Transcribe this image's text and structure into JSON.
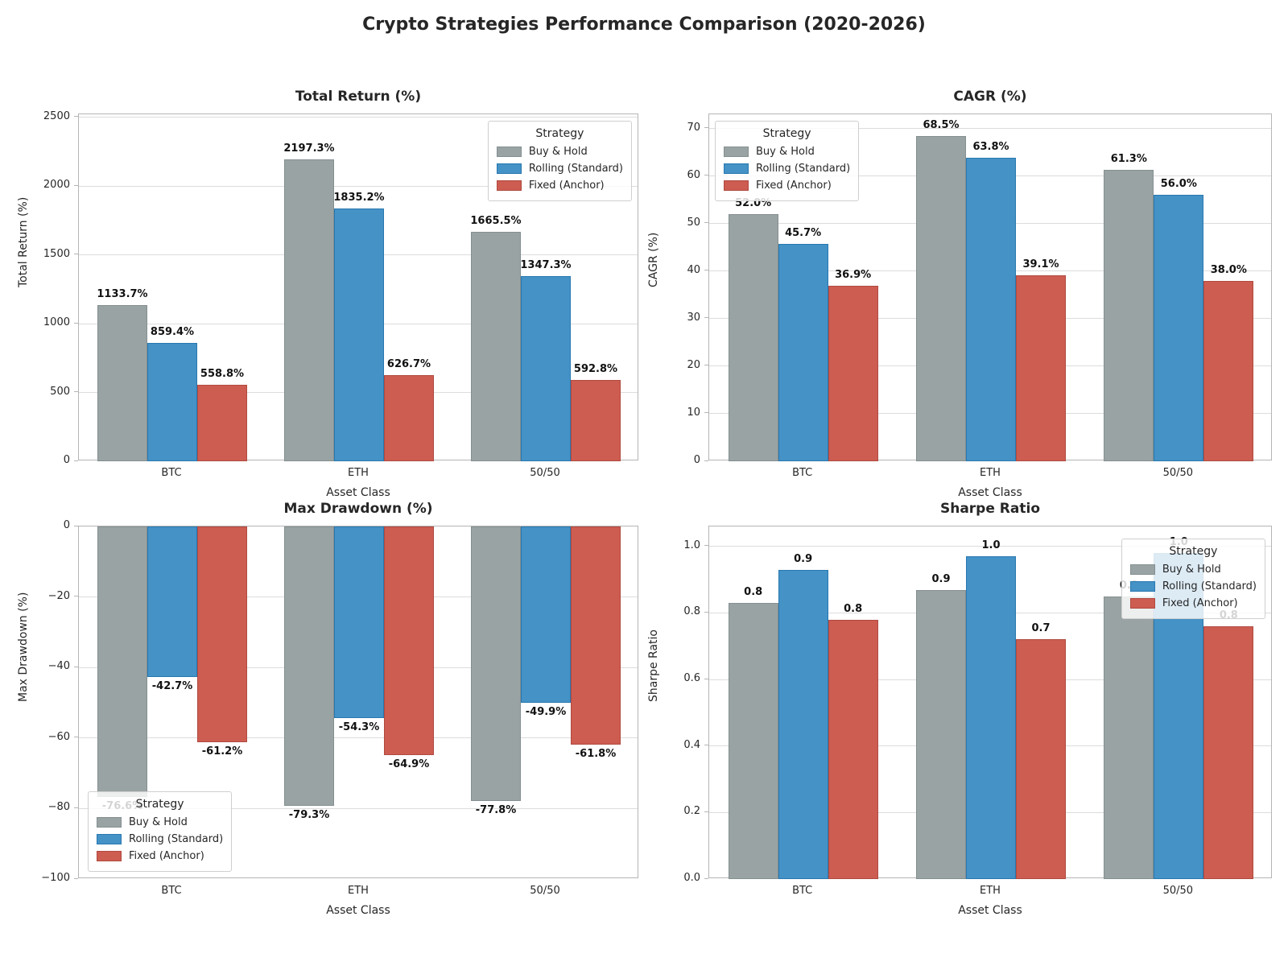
{
  "title": "Crypto Strategies Performance Comparison (2020-2026)",
  "legend": {
    "title": "Strategy",
    "entries": [
      {
        "label": "Buy & Hold",
        "color": "#9aa3a3",
        "edge": "#848f90"
      },
      {
        "label": "Rolling (Standard)",
        "color": "#4492c6",
        "edge": "#2878b0"
      },
      {
        "label": "Fixed (Anchor)",
        "color": "#cd5c51",
        "edge": "#b04a40"
      }
    ]
  },
  "chart_data": [
    {
      "id": "total-return",
      "type": "bar",
      "title": "Total Return (%)",
      "xlabel": "Asset Class",
      "ylabel": "Total Return (%)",
      "categories": [
        "BTC",
        "ETH",
        "50/50"
      ],
      "series": [
        {
          "name": "Buy & Hold",
          "values": [
            1133.7,
            2197.3,
            1665.5
          ],
          "labels": [
            "1133.7%",
            "2197.3%",
            "1665.5%"
          ]
        },
        {
          "name": "Rolling (Standard)",
          "values": [
            859.4,
            1835.2,
            1347.3
          ],
          "labels": [
            "859.4%",
            "1835.2%",
            "1347.3%"
          ]
        },
        {
          "name": "Fixed (Anchor)",
          "values": [
            558.8,
            626.7,
            592.8
          ],
          "labels": [
            "558.8%",
            "626.7%",
            "592.8%"
          ]
        }
      ],
      "ylim": [
        0,
        2523
      ],
      "ytick_values": [
        0,
        500,
        1000,
        1500,
        2000,
        2500
      ],
      "ytick_labels": [
        "0",
        "500",
        "1000",
        "1500",
        "2000",
        "2500"
      ],
      "grid": true,
      "legend_pos": "upper-right"
    },
    {
      "id": "cagr",
      "type": "bar",
      "title": "CAGR (%)",
      "xlabel": "Asset Class",
      "ylabel": "CAGR (%)",
      "categories": [
        "BTC",
        "ETH",
        "50/50"
      ],
      "series": [
        {
          "name": "Buy & Hold",
          "values": [
            52.0,
            68.5,
            61.3
          ],
          "labels": [
            "52.0%",
            "68.5%",
            "61.3%"
          ]
        },
        {
          "name": "Rolling (Standard)",
          "values": [
            45.7,
            63.8,
            56.0
          ],
          "labels": [
            "45.7%",
            "63.8%",
            "56.0%"
          ]
        },
        {
          "name": "Fixed (Anchor)",
          "values": [
            36.9,
            39.1,
            38.0
          ],
          "labels": [
            "36.9%",
            "39.1%",
            "38.0%"
          ]
        }
      ],
      "ylim": [
        0,
        73
      ],
      "ytick_values": [
        0,
        10,
        20,
        30,
        40,
        50,
        60,
        70
      ],
      "ytick_labels": [
        "0",
        "10",
        "20",
        "30",
        "40",
        "50",
        "60",
        "70"
      ],
      "grid": true,
      "legend_pos": "upper-left"
    },
    {
      "id": "max-drawdown",
      "type": "bar",
      "title": "Max Drawdown (%)",
      "xlabel": "Asset Class",
      "ylabel": "Max Drawdown (%)",
      "categories": [
        "BTC",
        "ETH",
        "50/50"
      ],
      "series": [
        {
          "name": "Buy & Hold",
          "values": [
            -76.6,
            -79.3,
            -77.8
          ],
          "labels": [
            "-76.6%",
            "-79.3%",
            "-77.8%"
          ]
        },
        {
          "name": "Rolling (Standard)",
          "values": [
            -42.7,
            -54.3,
            -49.9
          ],
          "labels": [
            "-42.7%",
            "-54.3%",
            "-49.9%"
          ]
        },
        {
          "name": "Fixed (Anchor)",
          "values": [
            -61.2,
            -64.9,
            -61.8
          ],
          "labels": [
            "-61.2%",
            "-64.9%",
            "-61.8%"
          ]
        }
      ],
      "ylim": [
        -100,
        0
      ],
      "ytick_values": [
        0,
        -20,
        -40,
        -60,
        -80,
        -100
      ],
      "ytick_labels": [
        "0",
        "−20",
        "−40",
        "−60",
        "−80",
        "−100"
      ],
      "grid": true,
      "legend_pos": "lower-left"
    },
    {
      "id": "sharpe-ratio",
      "type": "bar",
      "title": "Sharpe Ratio",
      "xlabel": "Asset Class",
      "ylabel": "Sharpe Ratio",
      "categories": [
        "BTC",
        "ETH",
        "50/50"
      ],
      "series": [
        {
          "name": "Buy & Hold",
          "values": [
            0.83,
            0.87,
            0.85
          ],
          "labels": [
            "0.8",
            "0.9",
            "0.8"
          ]
        },
        {
          "name": "Rolling (Standard)",
          "values": [
            0.93,
            0.97,
            0.98
          ],
          "labels": [
            "0.9",
            "1.0",
            "1.0"
          ]
        },
        {
          "name": "Fixed (Anchor)",
          "values": [
            0.78,
            0.72,
            0.76
          ],
          "labels": [
            "0.8",
            "0.7",
            "0.8"
          ]
        }
      ],
      "ylim": [
        0,
        1.06
      ],
      "ytick_values": [
        0.0,
        0.2,
        0.4,
        0.6,
        0.8,
        1.0
      ],
      "ytick_labels": [
        "0.0",
        "0.2",
        "0.4",
        "0.6",
        "0.8",
        "1.0"
      ],
      "grid": true,
      "legend_pos": "upper-right-low"
    }
  ]
}
